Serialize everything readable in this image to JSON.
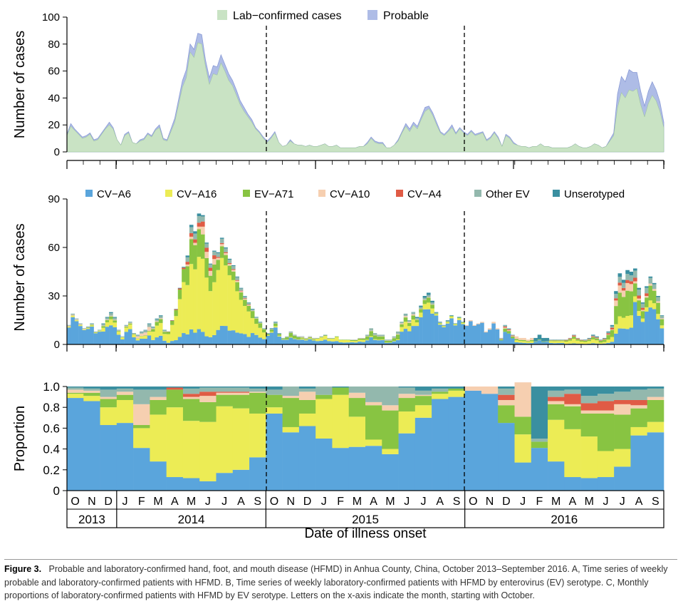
{
  "chart_data": [
    {
      "panel": "A",
      "type": "area",
      "ylabel": "Number of cases",
      "ylim": [
        0,
        100
      ],
      "yticks": [
        0,
        20,
        40,
        60,
        80,
        100
      ],
      "legend": [
        "Lab−confirmed cases",
        "Probable"
      ],
      "legend_colors": [
        "#c9e3c4",
        "#aebce6"
      ],
      "weeks": 156,
      "series": [
        {
          "name": "Lab−confirmed cases",
          "values": [
            12,
            19,
            16,
            13,
            10,
            11,
            13,
            8,
            9,
            13,
            17,
            20,
            17,
            9,
            5,
            12,
            14,
            7,
            6,
            8,
            9,
            13,
            11,
            16,
            18,
            9,
            8,
            15,
            22,
            35,
            48,
            55,
            74,
            70,
            81,
            80,
            63,
            50,
            58,
            57,
            66,
            60,
            53,
            49,
            42,
            35,
            30,
            26,
            22,
            17,
            14,
            10,
            7,
            10,
            14,
            7,
            4,
            5,
            8,
            6,
            5,
            5,
            4,
            5,
            4,
            4,
            5,
            6,
            4,
            4,
            5,
            3,
            3,
            3,
            3,
            3,
            4,
            4,
            6,
            10,
            7,
            6,
            6,
            3,
            3,
            5,
            8,
            14,
            19,
            15,
            20,
            17,
            24,
            30,
            32,
            27,
            20,
            14,
            12,
            15,
            18,
            13,
            17,
            14,
            12,
            15,
            12,
            13,
            14,
            8,
            10,
            14,
            10,
            4,
            12,
            10,
            6,
            5,
            4,
            4,
            3,
            4,
            4,
            6,
            4,
            4,
            3,
            3,
            3,
            3,
            3,
            4,
            6,
            4,
            3,
            3,
            4,
            6,
            5,
            3,
            4,
            8,
            12,
            33,
            44,
            40,
            46,
            45,
            47,
            35,
            26,
            36,
            42,
            38,
            30,
            18
          ]
        },
        {
          "name": "Probable",
          "values": [
            1,
            2,
            1,
            1,
            1,
            1,
            1,
            1,
            1,
            1,
            1,
            2,
            1,
            0,
            0,
            1,
            1,
            0,
            0,
            1,
            1,
            1,
            1,
            1,
            2,
            1,
            1,
            2,
            3,
            4,
            5,
            6,
            6,
            6,
            7,
            7,
            5,
            5,
            6,
            6,
            6,
            5,
            5,
            4,
            4,
            3,
            3,
            2,
            2,
            1,
            1,
            1,
            1,
            1,
            1,
            0,
            0,
            0,
            1,
            0,
            0,
            0,
            0,
            0,
            0,
            0,
            0,
            0,
            0,
            0,
            0,
            0,
            0,
            0,
            0,
            0,
            0,
            0,
            1,
            1,
            1,
            1,
            1,
            0,
            0,
            0,
            1,
            1,
            2,
            2,
            2,
            2,
            2,
            3,
            2,
            2,
            2,
            1,
            1,
            1,
            2,
            1,
            1,
            1,
            1,
            1,
            1,
            1,
            1,
            1,
            1,
            1,
            1,
            0,
            1,
            1,
            1,
            0,
            0,
            0,
            0,
            0,
            0,
            0,
            0,
            0,
            0,
            0,
            0,
            0,
            0,
            0,
            0,
            0,
            0,
            0,
            0,
            0,
            0,
            0,
            0,
            1,
            2,
            10,
            12,
            12,
            15,
            14,
            12,
            10,
            8,
            9,
            10,
            8,
            7,
            4
          ]
        }
      ]
    },
    {
      "panel": "B",
      "type": "bar",
      "stacked": true,
      "ylabel": "Number of cases",
      "ylim": [
        0,
        90
      ],
      "yticks": [
        0,
        30,
        60,
        90
      ],
      "legend": [
        "CV−A6",
        "CV−A16",
        "EV−A71",
        "CV−A10",
        "CV−A4",
        "Other EV",
        "Unserotyped"
      ],
      "legend_colors": [
        "#5aa5dc",
        "#ecec55",
        "#88c442",
        "#f6cfb0",
        "#e05b45",
        "#93b8ad",
        "#3a8fa0"
      ],
      "weekly_totals": [
        12,
        19,
        16,
        13,
        10,
        11,
        13,
        8,
        9,
        13,
        17,
        20,
        17,
        9,
        5,
        12,
        14,
        7,
        6,
        8,
        9,
        13,
        11,
        16,
        18,
        9,
        8,
        15,
        22,
        35,
        48,
        55,
        74,
        70,
        81,
        80,
        63,
        50,
        58,
        57,
        66,
        60,
        53,
        49,
        42,
        35,
        30,
        26,
        22,
        17,
        14,
        10,
        7,
        10,
        14,
        7,
        4,
        5,
        8,
        6,
        5,
        5,
        4,
        5,
        4,
        4,
        5,
        6,
        4,
        4,
        5,
        3,
        3,
        3,
        3,
        3,
        4,
        4,
        6,
        10,
        7,
        6,
        6,
        3,
        3,
        5,
        8,
        14,
        19,
        15,
        20,
        17,
        24,
        30,
        32,
        27,
        20,
        14,
        12,
        15,
        18,
        13,
        17,
        14,
        12,
        15,
        12,
        13,
        14,
        8,
        10,
        14,
        10,
        4,
        12,
        10,
        6,
        5,
        4,
        4,
        3,
        4,
        4,
        6,
        4,
        4,
        3,
        3,
        3,
        3,
        3,
        4,
        6,
        4,
        3,
        3,
        4,
        6,
        5,
        3,
        4,
        8,
        12,
        33,
        44,
        40,
        46,
        45,
        47,
        35,
        26,
        36,
        42,
        38,
        30,
        18
      ]
    },
    {
      "panel": "C",
      "type": "bar",
      "stacked": true,
      "ylabel": "Proportion",
      "ylim": [
        0,
        1
      ],
      "yticks": [
        "0",
        "0.2",
        "0.4",
        "0.6",
        "0.8",
        "1.0"
      ],
      "xlabel": "Date of illness onset",
      "categories": [
        "O",
        "N",
        "D",
        "J",
        "F",
        "M",
        "A",
        "M",
        "J",
        "J",
        "A",
        "S",
        "O",
        "N",
        "D",
        "J",
        "F",
        "M",
        "A",
        "M",
        "J",
        "J",
        "A",
        "S",
        "O",
        "N",
        "D",
        "J",
        "F",
        "M",
        "A",
        "M",
        "J",
        "J",
        "A",
        "S"
      ],
      "years": [
        {
          "label": "2013",
          "start": 0,
          "end": 3
        },
        {
          "label": "2014",
          "start": 3,
          "end": 12
        },
        {
          "label": "2015",
          "start": 12,
          "end": 24
        },
        {
          "label": "2016",
          "start": 24,
          "end": 36
        }
      ],
      "series": [
        {
          "name": "CV−A6",
          "values": [
            0.89,
            0.86,
            0.63,
            0.65,
            0.41,
            0.28,
            0.13,
            0.12,
            0.09,
            0.17,
            0.2,
            0.32,
            0.74,
            0.56,
            0.62,
            0.5,
            0.41,
            0.42,
            0.43,
            0.35,
            0.55,
            0.7,
            0.88,
            0.9,
            0.96,
            0.93,
            0.65,
            0.27,
            0.41,
            0.28,
            0.13,
            0.12,
            0.13,
            0.23,
            0.53,
            0.56
          ]
        },
        {
          "name": "CV−A16",
          "values": [
            0.04,
            0.05,
            0.17,
            0.22,
            0.19,
            0.45,
            0.67,
            0.55,
            0.57,
            0.64,
            0.59,
            0.42,
            0.06,
            0.05,
            0.12,
            0.38,
            0.51,
            0.29,
            0.06,
            0.05,
            0.21,
            0.12,
            0.05,
            0.06,
            0.0,
            0.0,
            0.0,
            0.27,
            0.0,
            0.4,
            0.46,
            0.4,
            0.25,
            0.17,
            0.08,
            0.1
          ]
        },
        {
          "name": "EV−A71",
          "values": [
            0.01,
            0.03,
            0.08,
            0.05,
            0.03,
            0.14,
            0.17,
            0.21,
            0.19,
            0.11,
            0.13,
            0.2,
            0.12,
            0.28,
            0.13,
            0.04,
            0.07,
            0.18,
            0.33,
            0.37,
            0.13,
            0.09,
            0.02,
            0.02,
            0.0,
            0.0,
            0.17,
            0.17,
            0.06,
            0.15,
            0.22,
            0.22,
            0.36,
            0.33,
            0.18,
            0.21
          ]
        },
        {
          "name": "CV−A10",
          "values": [
            0.03,
            0.02,
            0.02,
            0.03,
            0.2,
            0.03,
            0.0,
            0.02,
            0.06,
            0.02,
            0.02,
            0.01,
            0.0,
            0.02,
            0.08,
            0.0,
            0.0,
            0.05,
            0.03,
            0.05,
            0.04,
            0.01,
            0.0,
            0.0,
            0.04,
            0.07,
            0.05,
            0.33,
            0.0,
            0.03,
            0.02,
            0.03,
            0.03,
            0.1,
            0.03,
            0.03
          ]
        },
        {
          "name": "CV−A4",
          "values": [
            0.0,
            0.0,
            0.0,
            0.0,
            0.0,
            0.0,
            0.02,
            0.03,
            0.04,
            0.01,
            0.01,
            0.0,
            0.0,
            0.0,
            0.0,
            0.0,
            0.0,
            0.0,
            0.0,
            0.0,
            0.0,
            0.0,
            0.0,
            0.0,
            0.0,
            0.0,
            0.05,
            0.0,
            0.0,
            0.04,
            0.1,
            0.07,
            0.09,
            0.04,
            0.05,
            0.0
          ]
        },
        {
          "name": "Other EV",
          "values": [
            0.02,
            0.02,
            0.07,
            0.03,
            0.14,
            0.07,
            0.0,
            0.05,
            0.04,
            0.04,
            0.04,
            0.03,
            0.05,
            0.09,
            0.03,
            0.08,
            0.0,
            0.06,
            0.15,
            0.18,
            0.06,
            0.04,
            0.03,
            0.0,
            0.0,
            0.0,
            0.06,
            0.0,
            0.03,
            0.06,
            0.04,
            0.07,
            0.07,
            0.08,
            0.1,
            0.08
          ]
        },
        {
          "name": "Unserotyped",
          "values": [
            0.01,
            0.02,
            0.03,
            0.02,
            0.03,
            0.03,
            0.01,
            0.02,
            0.01,
            0.01,
            0.01,
            0.02,
            0.03,
            0.0,
            0.02,
            0.0,
            0.01,
            0.0,
            0.0,
            0.0,
            0.01,
            0.04,
            0.02,
            0.02,
            0.0,
            0.0,
            0.02,
            0.0,
            0.5,
            0.04,
            0.03,
            0.09,
            0.07,
            0.05,
            0.03,
            0.02
          ]
        }
      ]
    }
  ],
  "caption": {
    "label": "Figure 3.",
    "text": "Probable and laboratory-confirmed hand, foot, and mouth disease (HFMD) in Anhua County, China, October 2013–September 2016. A, Time series of weekly probable and laboratory-confirmed patients with HFMD. B, Time series of weekly laboratory-confirmed patients with HFMD by enterovirus (EV) serotype. C, Monthly proportions of laboratory-confirmed patients with HFMD by EV serotype. Letters on the x-axis indicate the month, starting with October."
  }
}
